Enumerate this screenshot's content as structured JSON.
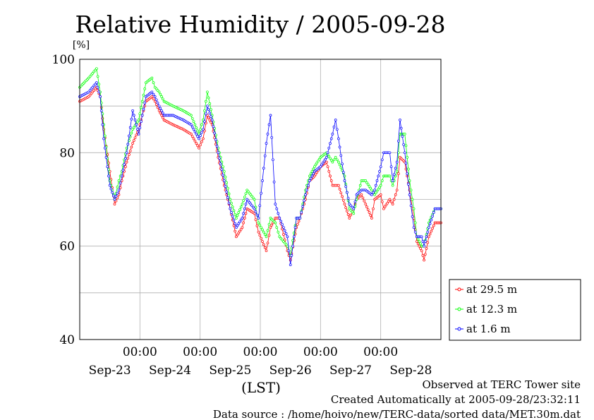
{
  "chart_data": {
    "type": "line",
    "title": "Relative Humidity / 2005-09-28",
    "ylabel": "[%]",
    "xlabel": "(LST)",
    "ylim": [
      40,
      100
    ],
    "yticks": [
      40,
      60,
      80,
      100
    ],
    "xlim": [
      -1,
      5
    ],
    "time_ticks": [
      "00:00",
      "00:00",
      "00:00",
      "00:00",
      "00:00"
    ],
    "date_labels": [
      "Sep-23",
      "Sep-24",
      "Sep-25",
      "Sep-26",
      "Sep-27",
      "Sep-28"
    ],
    "grid": true,
    "legend_position": "right",
    "colors": {
      "at_29_5": "#ff0000",
      "at_12_3": "#00ff00",
      "at_1_6": "#0000ff"
    },
    "series": [
      {
        "name": "at 29.5 m",
        "color": "#ff0000",
        "x": [
          -1.0,
          -0.85,
          -0.72,
          -0.66,
          -0.6,
          -0.5,
          -0.42,
          -0.35,
          -0.3,
          -0.22,
          -0.12,
          -0.02,
          0.1,
          0.2,
          0.25,
          0.32,
          0.4,
          0.55,
          0.72,
          0.85,
          0.98,
          1.05,
          1.12,
          1.2,
          1.3,
          1.4,
          1.5,
          1.6,
          1.7,
          1.78,
          1.9,
          1.97,
          2.1,
          2.17,
          2.25,
          2.32,
          2.45,
          2.5,
          2.6,
          2.66,
          2.75,
          2.82,
          2.9,
          3.0,
          3.1,
          3.2,
          3.25,
          3.3,
          3.4,
          3.48,
          3.55,
          3.6,
          3.68,
          3.75,
          3.85,
          3.9,
          4.0,
          4.05,
          4.15,
          4.2,
          4.27,
          4.32,
          4.4,
          4.48,
          4.55,
          4.6,
          4.68,
          4.72,
          4.8,
          4.9,
          5.0
        ],
        "y": [
          91,
          92,
          94,
          92,
          85,
          76,
          69,
          71,
          74,
          78,
          82,
          85,
          91,
          92,
          91,
          89,
          87,
          86,
          85,
          84,
          81,
          83,
          88,
          86,
          79,
          73,
          68,
          62,
          64,
          68,
          67,
          63,
          59,
          64,
          66,
          66,
          59,
          57,
          64,
          66,
          70,
          74,
          75,
          77,
          78,
          73,
          73,
          73,
          69,
          66,
          68,
          70,
          71,
          69,
          66,
          70,
          71,
          68,
          70,
          69,
          72,
          79,
          78,
          72,
          66,
          61,
          59,
          57,
          62,
          65,
          65
        ]
      },
      {
        "name": "at 12.3 m",
        "color": "#00ff00",
        "x": [
          -1.0,
          -0.85,
          -0.72,
          -0.66,
          -0.6,
          -0.5,
          -0.42,
          -0.35,
          -0.3,
          -0.22,
          -0.12,
          -0.02,
          0.1,
          0.2,
          0.25,
          0.32,
          0.4,
          0.55,
          0.72,
          0.85,
          0.98,
          1.05,
          1.12,
          1.2,
          1.3,
          1.4,
          1.5,
          1.6,
          1.7,
          1.78,
          1.9,
          1.97,
          2.1,
          2.17,
          2.25,
          2.32,
          2.45,
          2.5,
          2.6,
          2.66,
          2.75,
          2.82,
          2.9,
          3.0,
          3.1,
          3.2,
          3.25,
          3.3,
          3.4,
          3.48,
          3.55,
          3.6,
          3.68,
          3.75,
          3.85,
          3.9,
          4.0,
          4.05,
          4.15,
          4.2,
          4.27,
          4.32,
          4.4,
          4.48,
          4.55,
          4.6,
          4.68,
          4.72,
          4.8,
          4.9,
          5.0
        ],
        "y": [
          94,
          96,
          98,
          93,
          86,
          74,
          70,
          74,
          76,
          81,
          85,
          87,
          95,
          96,
          94,
          93,
          91,
          90,
          89,
          88,
          84,
          87,
          93,
          88,
          81,
          76,
          70,
          66,
          69,
          72,
          70,
          65,
          62,
          66,
          65,
          62,
          60,
          58,
          66,
          66,
          72,
          75,
          77,
          79,
          80,
          78,
          79,
          78,
          75,
          68,
          67,
          70,
          74,
          74,
          72,
          71,
          73,
          75,
          75,
          73,
          76,
          84,
          84,
          74,
          68,
          62,
          60,
          60,
          65,
          68,
          68
        ]
      },
      {
        "name": "at 1.6 m",
        "color": "#0000ff",
        "x": [
          -1.0,
          -0.85,
          -0.72,
          -0.66,
          -0.6,
          -0.5,
          -0.42,
          -0.35,
          -0.3,
          -0.22,
          -0.12,
          -0.02,
          0.1,
          0.2,
          0.25,
          0.32,
          0.4,
          0.55,
          0.72,
          0.85,
          0.98,
          1.05,
          1.12,
          1.2,
          1.3,
          1.4,
          1.5,
          1.6,
          1.7,
          1.78,
          1.9,
          1.97,
          2.1,
          2.17,
          2.25,
          2.32,
          2.45,
          2.5,
          2.6,
          2.66,
          2.75,
          2.82,
          2.9,
          3.0,
          3.1,
          3.2,
          3.25,
          3.3,
          3.4,
          3.48,
          3.55,
          3.6,
          3.68,
          3.75,
          3.85,
          3.9,
          4.0,
          4.05,
          4.15,
          4.2,
          4.27,
          4.32,
          4.4,
          4.48,
          4.55,
          4.6,
          4.68,
          4.72,
          4.8,
          4.9,
          5.0
        ],
        "y": [
          92,
          93,
          95,
          92,
          83,
          73,
          70,
          72,
          75,
          80,
          89,
          84,
          92,
          93,
          92,
          90,
          88,
          88,
          87,
          86,
          83,
          85,
          90,
          87,
          80,
          74,
          68,
          64,
          66,
          70,
          68,
          66,
          82,
          88,
          69,
          66,
          62,
          56,
          66,
          66,
          71,
          74,
          76,
          77,
          79,
          84,
          87,
          83,
          74,
          69,
          68,
          71,
          72,
          72,
          71,
          72,
          77,
          80,
          80,
          74,
          78,
          87,
          80,
          71,
          64,
          62,
          62,
          60,
          64,
          68,
          68
        ]
      }
    ],
    "footer": {
      "line1": "Observed at TERC Tower site",
      "line2": "Created Automatically at 2005-09-28/23:32:11",
      "line3": "Data source : /home/hoivo/new/TERC-data/sorted  data/MET.30m.dat"
    }
  }
}
